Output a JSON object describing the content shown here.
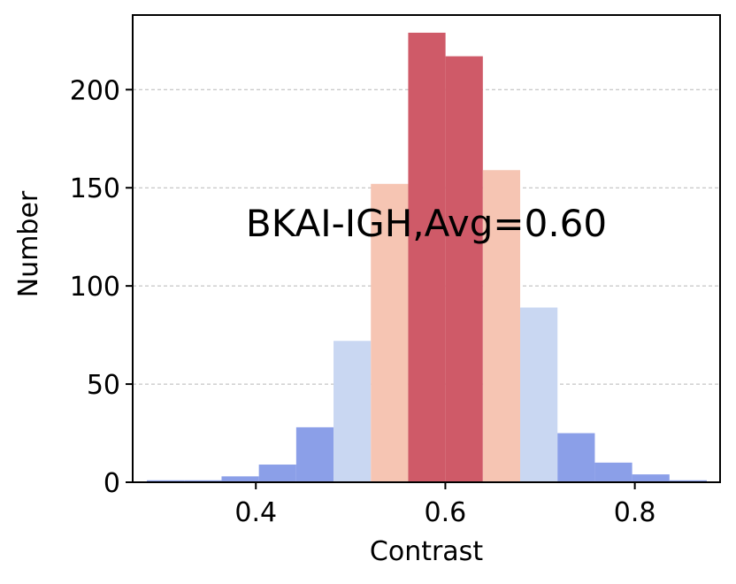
{
  "chart_data": {
    "type": "bar",
    "title": "",
    "xlabel": "Contrast",
    "ylabel": "Number",
    "xlim": [
      0.27,
      0.89
    ],
    "ylim": [
      0,
      238
    ],
    "xticks": [
      {
        "value": 0.4,
        "label": "0.4"
      },
      {
        "value": 0.6,
        "label": "0.6"
      },
      {
        "value": 0.8,
        "label": "0.8"
      }
    ],
    "yticks": [
      {
        "value": 0,
        "label": "0"
      },
      {
        "value": 50,
        "label": "50"
      },
      {
        "value": 100,
        "label": "100"
      },
      {
        "value": 150,
        "label": "150"
      },
      {
        "value": 200,
        "label": "200"
      }
    ],
    "grid": "horizontal-dashed",
    "annotation": "BKAI-IGH,Avg=0.60",
    "bin_width": 0.0394,
    "bins": [
      {
        "left": 0.285,
        "count": 1,
        "color": "#8b9fe8"
      },
      {
        "left": 0.3244,
        "count": 1,
        "color": "#8b9fe8"
      },
      {
        "left": 0.3638,
        "count": 3,
        "color": "#8b9fe8"
      },
      {
        "left": 0.4032,
        "count": 9,
        "color": "#8b9fe8"
      },
      {
        "left": 0.4426,
        "count": 28,
        "color": "#8b9fe8"
      },
      {
        "left": 0.482,
        "count": 72,
        "color": "#c9d7f2"
      },
      {
        "left": 0.5214,
        "count": 152,
        "color": "#f6c5b3"
      },
      {
        "left": 0.5608,
        "count": 229,
        "color": "#cf5a68"
      },
      {
        "left": 0.6002,
        "count": 217,
        "color": "#cf5a68"
      },
      {
        "left": 0.6396,
        "count": 159,
        "color": "#f6c5b3"
      },
      {
        "left": 0.679,
        "count": 89,
        "color": "#c9d7f2"
      },
      {
        "left": 0.7184,
        "count": 25,
        "color": "#8b9fe8"
      },
      {
        "left": 0.7578,
        "count": 10,
        "color": "#8b9fe8"
      },
      {
        "left": 0.7972,
        "count": 4,
        "color": "#8b9fe8"
      },
      {
        "left": 0.8366,
        "count": 1,
        "color": "#8b9fe8"
      }
    ]
  }
}
